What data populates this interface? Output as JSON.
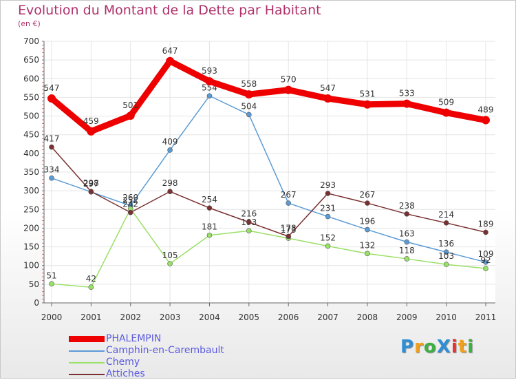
{
  "title": "Evolution du Montant de la Dette par Habitant",
  "subtitle": "(en €)",
  "logo_text": "ProXiti",
  "chart_data": {
    "type": "line",
    "title": "Evolution du Montant de la Dette par Habitant",
    "subtitle": "(en €)",
    "x": [
      "2000",
      "2001",
      "2002",
      "2003",
      "2004",
      "2005",
      "2006",
      "2007",
      "2008",
      "2009",
      "2010",
      "2011"
    ],
    "ylim": [
      0,
      700
    ],
    "yticks": [
      0,
      50,
      100,
      150,
      200,
      250,
      300,
      350,
      400,
      450,
      500,
      550,
      600,
      650,
      700
    ],
    "grid": true,
    "legend_position": "bottom-left",
    "series": [
      {
        "name": "PHALEMPIN",
        "color": "#ee0000",
        "values": [
          547,
          459,
          501,
          647,
          593,
          558,
          570,
          547,
          531,
          533,
          509,
          489
        ]
      },
      {
        "name": "Camphin-en-Carembault",
        "color": "#5a9bd5",
        "values": [
          334,
          297,
          260,
          409,
          554,
          504,
          267,
          231,
          196,
          163,
          136,
          109
        ]
      },
      {
        "name": "Chemy",
        "color": "#99e066",
        "values": [
          51,
          42,
          252,
          105,
          181,
          193,
          173,
          152,
          132,
          118,
          103,
          92
        ]
      },
      {
        "name": "Attiches",
        "color": "#7a3030",
        "values": [
          417,
          298,
          242,
          298,
          254,
          216,
          178,
          293,
          267,
          238,
          214,
          189
        ]
      }
    ]
  }
}
